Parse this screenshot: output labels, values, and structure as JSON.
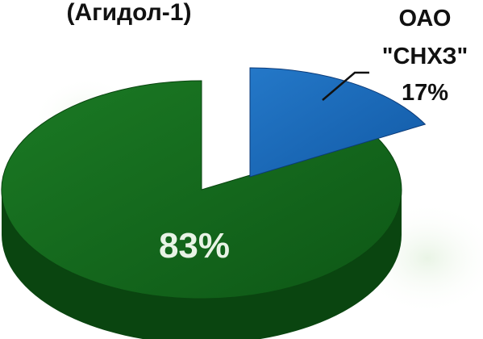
{
  "chart_data": {
    "type": "pie",
    "title": "(Агидол-1)",
    "slices": [
      {
        "label_lines": [
          "ОАО",
          "\"СНХЗ\""
        ],
        "percent_label": "17%",
        "value": 17,
        "color": "#1565b8",
        "side_color": "#0b3a78",
        "exploded": true
      },
      {
        "label_lines": [],
        "percent_label": "83%",
        "value": 83,
        "color": "#11631a",
        "side_color": "#0a4510",
        "exploded": false
      }
    ],
    "style": "3d",
    "legend": "none"
  }
}
